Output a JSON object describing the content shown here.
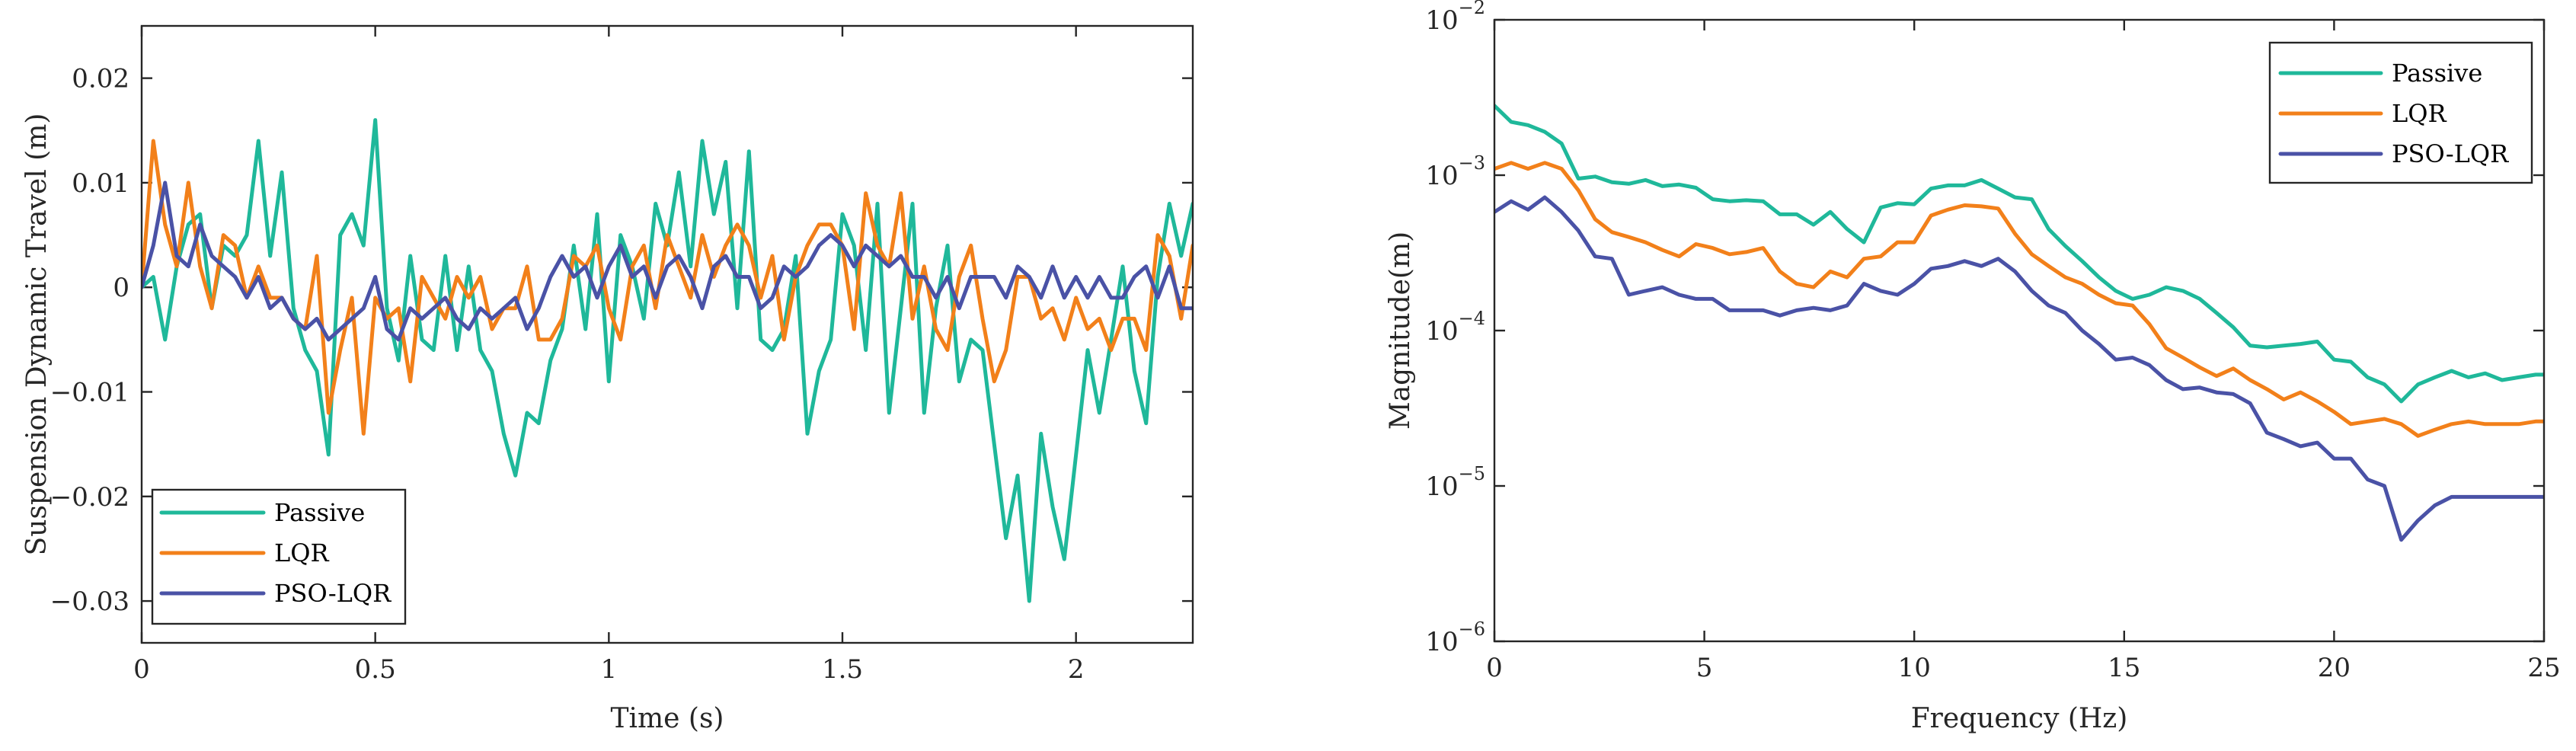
{
  "chart_data": [
    {
      "type": "line",
      "title": "",
      "xlabel": "Time (s)",
      "ylabel": "Suspension Dynamic Travel (m)",
      "xlim": [
        0,
        2.25
      ],
      "ylim": [
        -0.034,
        0.025
      ],
      "xscale": "linear",
      "yscale": "linear",
      "grid": false,
      "legend_position": "bottom-left",
      "x_ticks": [
        0,
        0.5,
        1,
        1.5,
        2
      ],
      "x_tick_labels": [
        "0",
        "0.5",
        "1",
        "1.5",
        "2"
      ],
      "y_ticks": [
        0.02,
        0.01,
        0,
        -0.01,
        -0.02,
        -0.03
      ],
      "y_tick_labels": [
        "0.02",
        "0.01",
        "0",
        "−0.01",
        "−0.02",
        "−0.03"
      ],
      "x": [
        0,
        0.025,
        0.05,
        0.075,
        0.1,
        0.125,
        0.15,
        0.175,
        0.2,
        0.225,
        0.25,
        0.275,
        0.3,
        0.325,
        0.35,
        0.375,
        0.4,
        0.425,
        0.45,
        0.475,
        0.5,
        0.525,
        0.55,
        0.575,
        0.6,
        0.625,
        0.65,
        0.675,
        0.7,
        0.725,
        0.75,
        0.775,
        0.8,
        0.825,
        0.85,
        0.875,
        0.9,
        0.925,
        0.95,
        0.975,
        1,
        1.025,
        1.05,
        1.075,
        1.1,
        1.125,
        1.15,
        1.175,
        1.2,
        1.225,
        1.25,
        1.275,
        1.3,
        1.325,
        1.35,
        1.375,
        1.4,
        1.425,
        1.45,
        1.475,
        1.5,
        1.525,
        1.55,
        1.575,
        1.6,
        1.625,
        1.65,
        1.675,
        1.7,
        1.725,
        1.75,
        1.775,
        1.8,
        1.825,
        1.85,
        1.875,
        1.9,
        1.925,
        1.95,
        1.975,
        2,
        2.025,
        2.05,
        2.075,
        2.1,
        2.125,
        2.15,
        2.175,
        2.2,
        2.225,
        2.25
      ],
      "series": [
        {
          "name": "Passive",
          "color": "#1fb89a",
          "values": [
            0,
            0.001,
            -0.005,
            0.002,
            0.006,
            0.007,
            -0.002,
            0.004,
            0.003,
            0.005,
            0.014,
            0.003,
            0.011,
            -0.002,
            -0.006,
            -0.008,
            -0.016,
            0.005,
            0.007,
            0.004,
            0.016,
            -0.002,
            -0.007,
            0.003,
            -0.005,
            -0.006,
            0.003,
            -0.006,
            0.002,
            -0.006,
            -0.008,
            -0.014,
            -0.018,
            -0.012,
            -0.013,
            -0.007,
            -0.004,
            0.004,
            -0.004,
            0.007,
            -0.009,
            0.005,
            0.002,
            -0.003,
            0.008,
            0.004,
            0.011,
            0.002,
            0.014,
            0.007,
            0.012,
            -0.002,
            0.013,
            -0.005,
            -0.006,
            -0.004,
            0.003,
            -0.014,
            -0.008,
            -0.005,
            0.007,
            0.004,
            -0.006,
            0.008,
            -0.012,
            -0.002,
            0.008,
            -0.012,
            -0.002,
            0.004,
            -0.009,
            -0.005,
            -0.006,
            -0.015,
            -0.024,
            -0.018,
            -0.03,
            -0.014,
            -0.021,
            -0.026,
            -0.016,
            -0.006,
            -0.012,
            -0.005,
            0.002,
            -0.008,
            -0.013,
            0.001,
            0.008,
            0.003,
            0.008
          ]
        },
        {
          "name": "LQR",
          "color": "#f2801a",
          "values": [
            0,
            0.014,
            0.006,
            0.002,
            0.01,
            0.002,
            -0.002,
            0.005,
            0.004,
            -0.001,
            0.002,
            -0.001,
            -0.001,
            -0.003,
            -0.004,
            0.003,
            -0.012,
            -0.006,
            -0.001,
            -0.014,
            -0.001,
            -0.003,
            -0.002,
            -0.009,
            0.001,
            -0.001,
            -0.003,
            0.001,
            -0.001,
            0.001,
            -0.004,
            -0.002,
            -0.002,
            0.002,
            -0.005,
            -0.005,
            -0.003,
            0.003,
            0.002,
            0.004,
            -0.002,
            -0.005,
            0.002,
            0.004,
            -0.002,
            0.005,
            0.002,
            -0.001,
            0.005,
            0.001,
            0.004,
            0.006,
            0.004,
            -0.001,
            0.003,
            -0.005,
            0.001,
            0.004,
            0.006,
            0.006,
            0.004,
            -0.004,
            0.009,
            0.004,
            0.002,
            0.009,
            -0.003,
            0.002,
            -0.004,
            -0.006,
            0.001,
            0.004,
            -0.003,
            -0.009,
            -0.006,
            0.001,
            0.001,
            -0.003,
            -0.002,
            -0.005,
            -0.001,
            -0.004,
            -0.003,
            -0.006,
            -0.003,
            -0.003,
            -0.006,
            0.005,
            0.003,
            -0.003,
            0.004
          ]
        },
        {
          "name": "PSO-LQR",
          "color": "#4a52a6",
          "values": [
            0,
            0.004,
            0.01,
            0.003,
            0.002,
            0.006,
            0.003,
            0.002,
            0.001,
            -0.001,
            0.001,
            -0.002,
            -0.001,
            -0.003,
            -0.004,
            -0.003,
            -0.005,
            -0.004,
            -0.003,
            -0.002,
            0.001,
            -0.004,
            -0.005,
            -0.002,
            -0.003,
            -0.002,
            -0.001,
            -0.003,
            -0.004,
            -0.002,
            -0.003,
            -0.002,
            -0.001,
            -0.004,
            -0.002,
            0.001,
            0.003,
            0.001,
            0.002,
            -0.001,
            0.002,
            0.004,
            0.001,
            0.002,
            -0.001,
            0.002,
            0.003,
            0.001,
            -0.002,
            0.002,
            0.003,
            0.001,
            0.001,
            -0.002,
            -0.001,
            0.002,
            0.001,
            0.002,
            0.004,
            0.005,
            0.004,
            0.002,
            0.004,
            0.003,
            0.002,
            0.003,
            0.001,
            0.001,
            -0.001,
            0.001,
            -0.002,
            0.001,
            0.001,
            0.001,
            -0.001,
            0.002,
            0.001,
            -0.001,
            0.002,
            -0.001,
            0.001,
            -0.001,
            0.001,
            -0.001,
            -0.001,
            0.001,
            0.002,
            -0.001,
            0.002,
            -0.002,
            -0.002
          ]
        }
      ]
    },
    {
      "type": "line",
      "title": "",
      "xlabel": "Frequency (Hz)",
      "ylabel": "Magnitude(m)",
      "xlim": [
        0,
        25
      ],
      "ylim": [
        1e-06,
        0.01
      ],
      "xscale": "linear",
      "yscale": "log",
      "grid": false,
      "legend_position": "top-right",
      "x_ticks": [
        0,
        5,
        10,
        15,
        20,
        25
      ],
      "x_tick_labels": [
        "0",
        "5",
        "10",
        "15",
        "20",
        "25"
      ],
      "y_ticks": [
        0.01,
        0.001,
        0.0001,
        1e-05,
        1e-06
      ],
      "y_tick_labels": [
        {
          "base": "10",
          "exp": "−2"
        },
        {
          "base": "10",
          "exp": "−3"
        },
        {
          "base": "10",
          "exp": "−4"
        },
        {
          "base": "10",
          "exp": "−5"
        },
        {
          "base": "10",
          "exp": "−6"
        }
      ],
      "x": [
        0,
        0.4,
        0.8,
        1.2,
        1.6,
        2.0,
        2.4,
        2.8,
        3.2,
        3.6,
        4.0,
        4.4,
        4.8,
        5.2,
        5.6,
        6.0,
        6.4,
        6.8,
        7.2,
        7.6,
        8.0,
        8.4,
        8.8,
        9.2,
        9.6,
        10.0,
        10.4,
        10.8,
        11.2,
        11.6,
        12.0,
        12.4,
        12.8,
        13.2,
        13.6,
        14.0,
        14.4,
        14.8,
        15.2,
        15.6,
        16.0,
        16.4,
        16.8,
        17.2,
        17.6,
        18.0,
        18.4,
        18.8,
        19.2,
        19.6,
        20.0,
        20.4,
        20.8,
        21.2,
        21.6,
        22.0,
        22.4,
        22.8,
        23.2,
        23.6,
        24.0,
        24.4,
        24.8,
        25.0
      ],
      "series": [
        {
          "name": "Passive",
          "color": "#1fb89a",
          "values": [
            0.0028,
            0.0022,
            0.0021,
            0.0019,
            0.0016,
            0.00095,
            0.00098,
            0.0009,
            0.00088,
            0.00093,
            0.00085,
            0.00087,
            0.00083,
            0.0007,
            0.00068,
            0.00069,
            0.00068,
            0.00056,
            0.00056,
            0.00048,
            0.00058,
            0.00045,
            0.00037,
            0.00062,
            0.00066,
            0.00065,
            0.00082,
            0.00086,
            0.00086,
            0.00093,
            0.00082,
            0.00072,
            0.0007,
            0.00045,
            0.00035,
            0.00028,
            0.00022,
            0.00018,
            0.00016,
            0.00017,
            0.00019,
            0.00018,
            0.00016,
            0.00013,
            0.000105,
            8e-05,
            7.8e-05,
            8e-05,
            8.2e-05,
            8.5e-05,
            6.5e-05,
            6.3e-05,
            5e-05,
            4.5e-05,
            3.5e-05,
            4.5e-05,
            5e-05,
            5.5e-05,
            5e-05,
            5.3e-05,
            4.8e-05,
            5e-05,
            5.2e-05,
            5.2e-05
          ]
        },
        {
          "name": "LQR",
          "color": "#f2801a",
          "values": [
            0.0011,
            0.0012,
            0.0011,
            0.0012,
            0.0011,
            0.0008,
            0.00052,
            0.00043,
            0.0004,
            0.00037,
            0.00033,
            0.0003,
            0.00036,
            0.00034,
            0.00031,
            0.00032,
            0.00034,
            0.00024,
            0.0002,
            0.00019,
            0.00024,
            0.00022,
            0.00029,
            0.0003,
            0.00037,
            0.00037,
            0.00055,
            0.0006,
            0.00064,
            0.00063,
            0.00061,
            0.00042,
            0.00031,
            0.00026,
            0.00022,
            0.0002,
            0.00017,
            0.00015,
            0.000145,
            0.00011,
            7.7e-05,
            6.7e-05,
            5.8e-05,
            5.1e-05,
            5.7e-05,
            4.8e-05,
            4.2e-05,
            3.6e-05,
            4e-05,
            3.5e-05,
            3e-05,
            2.5e-05,
            2.6e-05,
            2.7e-05,
            2.5e-05,
            2.1e-05,
            2.3e-05,
            2.5e-05,
            2.6e-05,
            2.5e-05,
            2.5e-05,
            2.5e-05,
            2.6e-05,
            2.6e-05
          ]
        },
        {
          "name": "PSO-LQR",
          "color": "#4a52a6",
          "values": [
            0.00058,
            0.00068,
            0.0006,
            0.00072,
            0.00058,
            0.00044,
            0.0003,
            0.00029,
            0.00017,
            0.00018,
            0.00019,
            0.00017,
            0.00016,
            0.00016,
            0.000135,
            0.000135,
            0.000135,
            0.000125,
            0.000135,
            0.00014,
            0.000135,
            0.000145,
            0.0002,
            0.00018,
            0.00017,
            0.0002,
            0.00025,
            0.00026,
            0.00028,
            0.00026,
            0.00029,
            0.00024,
            0.00018,
            0.000145,
            0.00013,
            0.0001,
            8.2e-05,
            6.5e-05,
            6.7e-05,
            6e-05,
            4.8e-05,
            4.2e-05,
            4.3e-05,
            4e-05,
            3.9e-05,
            3.4e-05,
            2.2e-05,
            2e-05,
            1.8e-05,
            1.9e-05,
            1.5e-05,
            1.5e-05,
            1.1e-05,
            1e-05,
            4.5e-06,
            6e-06,
            7.5e-06,
            8.5e-06,
            8.5e-06,
            8.5e-06,
            8.5e-06,
            8.5e-06,
            8.5e-06,
            8.5e-06
          ]
        }
      ]
    }
  ]
}
